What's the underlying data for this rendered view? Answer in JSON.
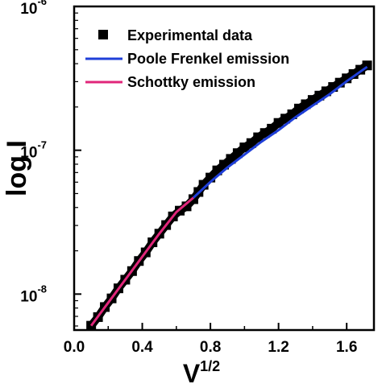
{
  "chart_data": {
    "type": "scatter",
    "xlabel": {
      "base": "V",
      "sup": "1/2"
    },
    "ylabel": "log I",
    "xlim": [
      0.0,
      1.76
    ],
    "ylim_log10": [
      -8.25,
      -6
    ],
    "y_scale": "log",
    "x_ticks": [
      "0.0",
      "0.4",
      "0.8",
      "1.2",
      "1.6"
    ],
    "x_tick_values": [
      0.0,
      0.4,
      0.8,
      1.2,
      1.6
    ],
    "y_ticks": [
      {
        "base": "10",
        "exp": "-8",
        "value": -8
      },
      {
        "base": "10",
        "exp": "-7",
        "value": -7
      },
      {
        "base": "10",
        "exp": "-6",
        "value": -6
      }
    ],
    "legend_position": "top-left",
    "legend": [
      {
        "label": "Experimental data",
        "kind": "marker",
        "color": "#000000"
      },
      {
        "label": "Poole Frenkel emission",
        "kind": "line",
        "color": "#1f3fd8"
      },
      {
        "label": "Schottky emission",
        "kind": "line",
        "color": "#e0267a"
      }
    ],
    "series": [
      {
        "name": "Experimental data",
        "x": [
          0.1,
          0.14,
          0.18,
          0.22,
          0.26,
          0.3,
          0.34,
          0.38,
          0.42,
          0.46,
          0.5,
          0.54,
          0.58,
          0.62,
          0.66,
          0.7,
          0.73,
          0.76,
          0.8,
          0.84,
          0.88,
          0.92,
          0.96,
          1.0,
          1.04,
          1.08,
          1.12,
          1.16,
          1.2,
          1.24,
          1.28,
          1.32,
          1.36,
          1.4,
          1.44,
          1.48,
          1.52,
          1.56,
          1.6,
          1.64,
          1.68,
          1.72
        ],
        "y_log10": [
          -8.22,
          -8.16,
          -8.09,
          -8.03,
          -7.96,
          -7.9,
          -7.84,
          -7.77,
          -7.71,
          -7.64,
          -7.58,
          -7.52,
          -7.46,
          -7.42,
          -7.39,
          -7.34,
          -7.29,
          -7.24,
          -7.19,
          -7.14,
          -7.1,
          -7.06,
          -7.02,
          -6.98,
          -6.95,
          -6.91,
          -6.88,
          -6.85,
          -6.81,
          -6.78,
          -6.75,
          -6.71,
          -6.68,
          -6.65,
          -6.62,
          -6.59,
          -6.56,
          -6.53,
          -6.5,
          -6.47,
          -6.44,
          -6.41
        ]
      },
      {
        "name": "Poole Frenkel emission",
        "x": [
          0.7,
          0.8,
          0.9,
          1.0,
          1.1,
          1.2,
          1.3,
          1.4,
          1.5,
          1.6,
          1.72
        ],
        "y_log10": [
          -7.33,
          -7.22,
          -7.12,
          -7.03,
          -6.94,
          -6.86,
          -6.77,
          -6.69,
          -6.61,
          -6.52,
          -6.42
        ]
      },
      {
        "name": "Schottky emission",
        "x": [
          0.1,
          0.2,
          0.3,
          0.4,
          0.5,
          0.6,
          0.7
        ],
        "y_log10": [
          -8.22,
          -8.06,
          -7.9,
          -7.74,
          -7.58,
          -7.43,
          -7.33
        ]
      }
    ]
  }
}
